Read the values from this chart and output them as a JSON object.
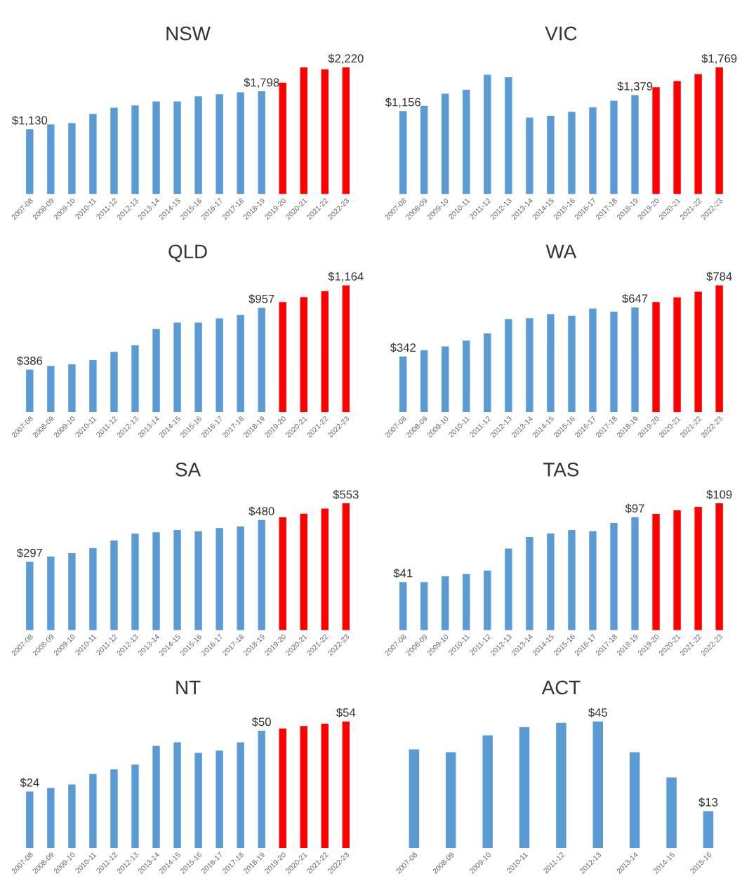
{
  "chart_data": [
    {
      "type": "bar",
      "title": "NSW",
      "categories": [
        "2007-08",
        "2008-09",
        "2009-10",
        "2010-11",
        "2011-12",
        "2012-13",
        "2013-14",
        "2014-15",
        "2015-16",
        "2016-17",
        "2017-18",
        "2018-19",
        "2019-20",
        "2020-21",
        "2021-22",
        "2022-23"
      ],
      "values": [
        1130,
        1215,
        1240,
        1400,
        1510,
        1550,
        1620,
        1620,
        1710,
        1745,
        1780,
        1798,
        1950,
        2220,
        2185,
        2220
      ],
      "colors": [
        "#5b9bd5",
        "#5b9bd5",
        "#5b9bd5",
        "#5b9bd5",
        "#5b9bd5",
        "#5b9bd5",
        "#5b9bd5",
        "#5b9bd5",
        "#5b9bd5",
        "#5b9bd5",
        "#5b9bd5",
        "#5b9bd5",
        "#ff0000",
        "#ff0000",
        "#ff0000",
        "#ff0000"
      ],
      "value_labels": [
        "$1,130",
        null,
        null,
        null,
        null,
        null,
        null,
        null,
        null,
        null,
        null,
        "$1,798",
        null,
        null,
        null,
        "$2,220"
      ]
    },
    {
      "type": "bar",
      "title": "VIC",
      "categories": [
        "2007-08",
        "2008-09",
        "2009-10",
        "2010-11",
        "2011-12",
        "2012-13",
        "2013-14",
        "2014-15",
        "2015-16",
        "2016-17",
        "2017-18",
        "2018-19",
        "2019-20",
        "2020-21",
        "2021-22",
        "2022-23"
      ],
      "values": [
        1156,
        1230,
        1400,
        1455,
        1665,
        1630,
        1065,
        1090,
        1145,
        1210,
        1300,
        1379,
        1490,
        1575,
        1675,
        1769
      ],
      "colors": [
        "#5b9bd5",
        "#5b9bd5",
        "#5b9bd5",
        "#5b9bd5",
        "#5b9bd5",
        "#5b9bd5",
        "#5b9bd5",
        "#5b9bd5",
        "#5b9bd5",
        "#5b9bd5",
        "#5b9bd5",
        "#5b9bd5",
        "#ff0000",
        "#ff0000",
        "#ff0000",
        "#ff0000"
      ],
      "value_labels": [
        "$1,156",
        null,
        null,
        null,
        null,
        null,
        null,
        null,
        null,
        null,
        null,
        "$1,379",
        null,
        null,
        null,
        "$1,769"
      ]
    },
    {
      "type": "bar",
      "title": "QLD",
      "categories": [
        "2007-08",
        "2008-09",
        "2009-10",
        "2010-11",
        "2011-12",
        "2012-13",
        "2013-14",
        "2014-15",
        "2015-16",
        "2016-17",
        "2017-18",
        "2018-19",
        "2019-20",
        "2020-21",
        "2021-22",
        "2022-23"
      ],
      "values": [
        386,
        420,
        435,
        475,
        550,
        610,
        760,
        820,
        820,
        860,
        890,
        957,
        1010,
        1055,
        1110,
        1164
      ],
      "colors": [
        "#5b9bd5",
        "#5b9bd5",
        "#5b9bd5",
        "#5b9bd5",
        "#5b9bd5",
        "#5b9bd5",
        "#5b9bd5",
        "#5b9bd5",
        "#5b9bd5",
        "#5b9bd5",
        "#5b9bd5",
        "#5b9bd5",
        "#ff0000",
        "#ff0000",
        "#ff0000",
        "#ff0000"
      ],
      "value_labels": [
        "$386",
        null,
        null,
        null,
        null,
        null,
        null,
        null,
        null,
        null,
        null,
        "$957",
        null,
        null,
        null,
        "$1,164"
      ]
    },
    {
      "type": "bar",
      "title": "WA",
      "categories": [
        "2007-08",
        "2008-09",
        "2009-10",
        "2010-11",
        "2011-12",
        "2012-13",
        "2013-14",
        "2014-15",
        "2015-16",
        "2016-17",
        "2017-18",
        "2018-19",
        "2019-20",
        "2020-21",
        "2021-22",
        "2022-23"
      ],
      "values": [
        342,
        380,
        405,
        440,
        485,
        575,
        580,
        605,
        595,
        640,
        620,
        647,
        680,
        710,
        745,
        784
      ],
      "colors": [
        "#5b9bd5",
        "#5b9bd5",
        "#5b9bd5",
        "#5b9bd5",
        "#5b9bd5",
        "#5b9bd5",
        "#5b9bd5",
        "#5b9bd5",
        "#5b9bd5",
        "#5b9bd5",
        "#5b9bd5",
        "#5b9bd5",
        "#ff0000",
        "#ff0000",
        "#ff0000",
        "#ff0000"
      ],
      "value_labels": [
        "$342",
        null,
        null,
        null,
        null,
        null,
        null,
        null,
        null,
        null,
        null,
        "$647",
        null,
        null,
        null,
        "$784"
      ]
    },
    {
      "type": "bar",
      "title": "SA",
      "categories": [
        "2007-08",
        "2008-09",
        "2009-10",
        "2010-11",
        "2011-12",
        "2012-13",
        "2013-14",
        "2014-15",
        "2015-16",
        "2016-17",
        "2017-18",
        "2018-19",
        "2019-20",
        "2020-21",
        "2021-22",
        "2022-23"
      ],
      "values": [
        297,
        320,
        335,
        357,
        390,
        420,
        426,
        436,
        430,
        445,
        452,
        480,
        492,
        508,
        530,
        553
      ],
      "colors": [
        "#5b9bd5",
        "#5b9bd5",
        "#5b9bd5",
        "#5b9bd5",
        "#5b9bd5",
        "#5b9bd5",
        "#5b9bd5",
        "#5b9bd5",
        "#5b9bd5",
        "#5b9bd5",
        "#5b9bd5",
        "#5b9bd5",
        "#ff0000",
        "#ff0000",
        "#ff0000",
        "#ff0000"
      ],
      "value_labels": [
        "$297",
        null,
        null,
        null,
        null,
        null,
        null,
        null,
        null,
        null,
        null,
        "$480",
        null,
        null,
        null,
        "$553"
      ]
    },
    {
      "type": "bar",
      "title": "TAS",
      "categories": [
        "2007-08",
        "2008-09",
        "2009-10",
        "2010-11",
        "2011-12",
        "2012-13",
        "2013-14",
        "2014-15",
        "2015-16",
        "2016-17",
        "2017-18",
        "2018-19",
        "2019-20",
        "2020-21",
        "2021-22",
        "2022-23"
      ],
      "values": [
        41,
        41,
        46,
        48,
        51,
        70,
        80,
        83,
        86,
        85,
        92,
        97,
        100,
        103,
        106,
        109
      ],
      "colors": [
        "#5b9bd5",
        "#5b9bd5",
        "#5b9bd5",
        "#5b9bd5",
        "#5b9bd5",
        "#5b9bd5",
        "#5b9bd5",
        "#5b9bd5",
        "#5b9bd5",
        "#5b9bd5",
        "#5b9bd5",
        "#5b9bd5",
        "#ff0000",
        "#ff0000",
        "#ff0000",
        "#ff0000"
      ],
      "value_labels": [
        "$41",
        null,
        null,
        null,
        null,
        null,
        null,
        null,
        null,
        null,
        null,
        "$97",
        null,
        null,
        null,
        "$109"
      ]
    },
    {
      "type": "bar",
      "title": "NT",
      "categories": [
        "2007-08",
        "2008-09",
        "2009-10",
        "2010-11",
        "2011-12",
        "2012-13",
        "2013-14",
        "2014-15",
        "2015-16",
        "2016-17",
        "2017-18",
        "2018-19",
        "2019-20",
        "2020-21",
        "2021-22",
        "2022-23"
      ],
      "values": [
        24,
        25.5,
        27,
        31.5,
        33.5,
        35.5,
        43.5,
        45,
        40.5,
        41.5,
        45,
        50,
        51,
        52,
        53,
        54
      ],
      "colors": [
        "#5b9bd5",
        "#5b9bd5",
        "#5b9bd5",
        "#5b9bd5",
        "#5b9bd5",
        "#5b9bd5",
        "#5b9bd5",
        "#5b9bd5",
        "#5b9bd5",
        "#5b9bd5",
        "#5b9bd5",
        "#5b9bd5",
        "#ff0000",
        "#ff0000",
        "#ff0000",
        "#ff0000"
      ],
      "value_labels": [
        "$24",
        null,
        null,
        null,
        null,
        null,
        null,
        null,
        null,
        null,
        null,
        "$50",
        null,
        null,
        null,
        "$54"
      ]
    },
    {
      "type": "bar",
      "title": "ACT",
      "categories": [
        "2007-08",
        "2008-09",
        "2009-10",
        "2010-11",
        "2011-12",
        "2012-13",
        "2013-14",
        "2014-15",
        "2015-16"
      ],
      "values": [
        35,
        34,
        40,
        43,
        44.5,
        45,
        34,
        25,
        13
      ],
      "colors": [
        "#5b9bd5",
        "#5b9bd5",
        "#5b9bd5",
        "#5b9bd5",
        "#5b9bd5",
        "#5b9bd5",
        "#5b9bd5",
        "#5b9bd5",
        "#5b9bd5"
      ],
      "value_labels": [
        null,
        null,
        null,
        null,
        null,
        "$45",
        null,
        null,
        "$13"
      ]
    }
  ]
}
